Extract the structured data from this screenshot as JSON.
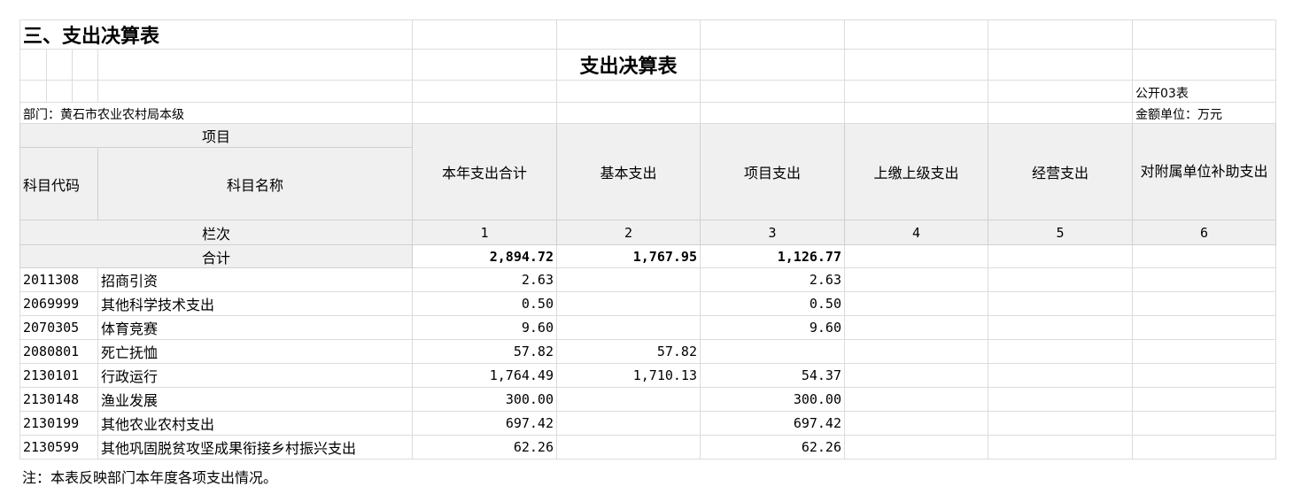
{
  "heading": "三、支出决算表",
  "table_title": "支出决算表",
  "form_no": "公开03表",
  "department": "部门：黄石市农业农村局本级",
  "unit": "金额单位：万元",
  "headers": {
    "project": "项目",
    "code": "科目代码",
    "name": "科目名称",
    "col1": "本年支出合计",
    "col2": "基本支出",
    "col3": "项目支出",
    "col4": "上缴上级支出",
    "col5": "经营支出",
    "col6": "对附属单位补助支出",
    "row_index_label": "栏次",
    "indices": [
      "1",
      "2",
      "3",
      "4",
      "5",
      "6"
    ]
  },
  "total": {
    "label": "合计",
    "values": [
      "2,894.72",
      "1,767.95",
      "1,126.77",
      "",
      "",
      ""
    ]
  },
  "rows": [
    {
      "code": "2011308",
      "name": "招商引资",
      "values": [
        "2.63",
        "",
        "2.63",
        "",
        "",
        ""
      ]
    },
    {
      "code": "2069999",
      "name": "其他科学技术支出",
      "values": [
        "0.50",
        "",
        "0.50",
        "",
        "",
        ""
      ]
    },
    {
      "code": "2070305",
      "name": "体育竞赛",
      "values": [
        "9.60",
        "",
        "9.60",
        "",
        "",
        ""
      ]
    },
    {
      "code": "2080801",
      "name": "死亡抚恤",
      "values": [
        "57.82",
        "57.82",
        "",
        "",
        "",
        ""
      ]
    },
    {
      "code": "2130101",
      "name": "行政运行",
      "values": [
        "1,764.49",
        "1,710.13",
        "54.37",
        "",
        "",
        ""
      ]
    },
    {
      "code": "2130148",
      "name": "渔业发展",
      "values": [
        "300.00",
        "",
        "300.00",
        "",
        "",
        ""
      ]
    },
    {
      "code": "2130199",
      "name": "其他农业农村支出",
      "values": [
        "697.42",
        "",
        "697.42",
        "",
        "",
        ""
      ]
    },
    {
      "code": "2130599",
      "name": "其他巩固脱贫攻坚成果衔接乡村振兴支出",
      "values": [
        "62.26",
        "",
        "62.26",
        "",
        "",
        ""
      ]
    }
  ],
  "note": "注：本表反映部门本年度各项支出情况。"
}
